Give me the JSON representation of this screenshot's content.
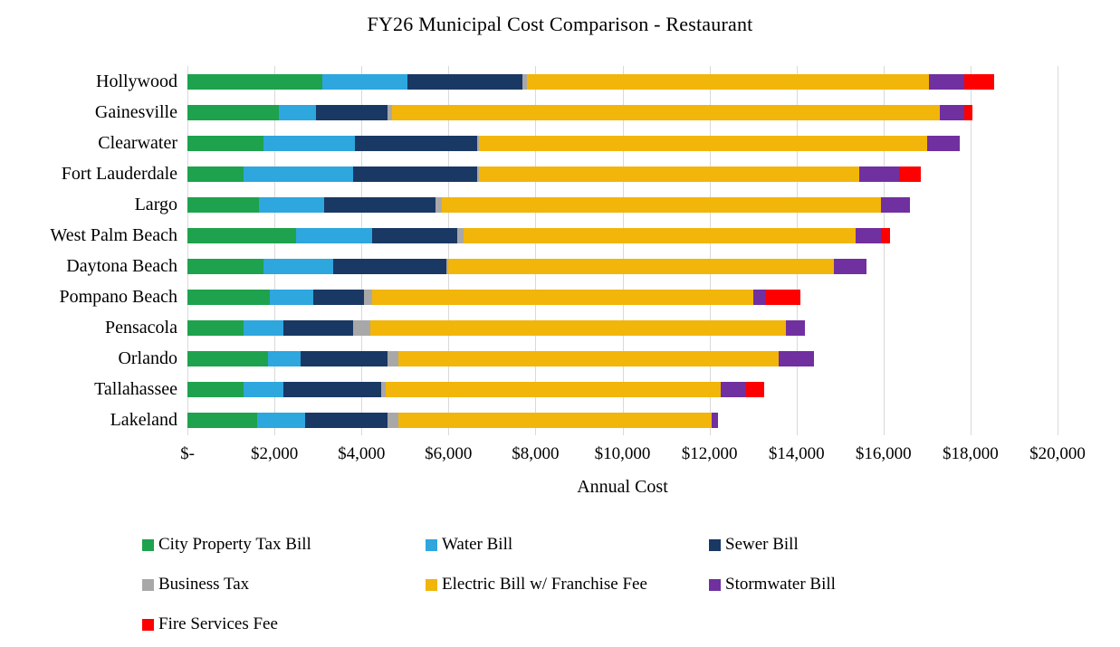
{
  "chart_data": {
    "type": "bar",
    "orientation": "horizontal",
    "stacked": true,
    "title": "FY26 Municipal Cost Comparison - Restaurant",
    "xlabel": "Annual Cost",
    "xlim": [
      0,
      20000
    ],
    "xtick_interval": 2000,
    "xtick_labels": [
      "$-",
      "$2,000",
      "$4,000",
      "$6,000",
      "$8,000",
      "$10,000",
      "$12,000",
      "$14,000",
      "$16,000",
      "$18,000",
      "$20,000"
    ],
    "gridlines": "vertical",
    "gridline_color": "#d9d9d9",
    "legend_position": "bottom",
    "categories": [
      "Hollywood",
      "Gainesville",
      "Clearwater",
      "Fort Lauderdale",
      "Largo",
      "West Palm Beach",
      "Daytona Beach",
      "Pompano Beach",
      "Pensacola",
      "Orlando",
      "Tallahassee",
      "Lakeland"
    ],
    "series": [
      {
        "name": "City Property Tax Bill",
        "color": "#1ea24d",
        "values": [
          3100,
          2100,
          1750,
          1300,
          1650,
          2500,
          1750,
          1900,
          1300,
          1850,
          1300,
          1600
        ]
      },
      {
        "name": "Water Bill",
        "color": "#2ea6de",
        "values": [
          1950,
          850,
          2100,
          2500,
          1500,
          1750,
          1600,
          1000,
          900,
          750,
          900,
          1100
        ]
      },
      {
        "name": "Sewer Bill",
        "color": "#1a3864",
        "values": [
          2650,
          1650,
          2800,
          2850,
          2550,
          1950,
          2600,
          1150,
          1600,
          2000,
          2250,
          1900
        ]
      },
      {
        "name": "Business Tax",
        "color": "#a8a8a8",
        "values": [
          100,
          100,
          50,
          50,
          150,
          150,
          50,
          200,
          400,
          250,
          100,
          250
        ]
      },
      {
        "name": "Electric Bill w/ Franchise Fee",
        "color": "#f2b50a",
        "values": [
          9250,
          12600,
          10300,
          8750,
          10100,
          9000,
          8850,
          8750,
          9550,
          8750,
          7700,
          7200
        ]
      },
      {
        "name": "Stormwater Bill",
        "color": "#7030a0",
        "values": [
          800,
          550,
          750,
          900,
          650,
          600,
          750,
          300,
          450,
          800,
          600,
          150
        ]
      },
      {
        "name": "Fire Services Fee",
        "color": "#fe0000",
        "values": [
          700,
          200,
          0,
          500,
          0,
          200,
          0,
          800,
          0,
          0,
          400,
          0
        ]
      }
    ]
  }
}
